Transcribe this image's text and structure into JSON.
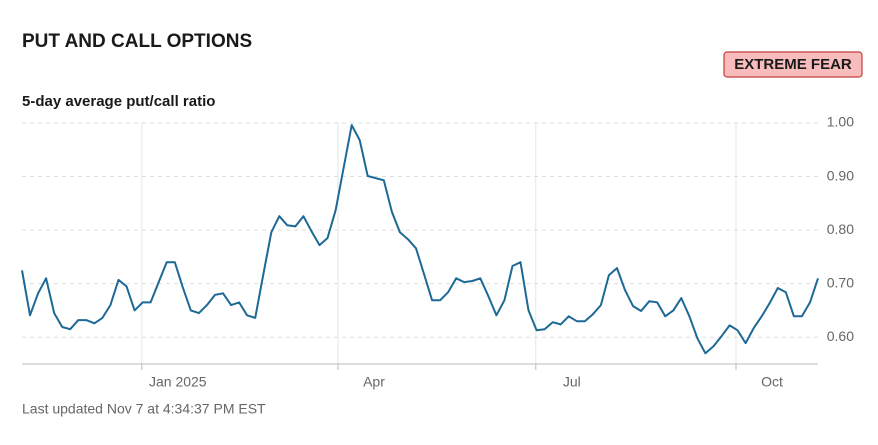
{
  "chart_data": {
    "type": "line",
    "title": "PUT AND CALL OPTIONS",
    "rating": "EXTREME FEAR",
    "subtitle": "5-day average put/call ratio",
    "footer": "Last updated Nov 7 at 4:34:37 PM EST",
    "color": "#1d6996",
    "grid": true,
    "values": [
      0.725,
      0.641,
      0.682,
      0.71,
      0.645,
      0.619,
      0.615,
      0.632,
      0.632,
      0.626,
      0.636,
      0.66,
      0.707,
      0.695,
      0.65,
      0.665,
      0.665,
      0.703,
      0.74,
      0.74,
      0.693,
      0.65,
      0.645,
      0.66,
      0.679,
      0.682,
      0.66,
      0.665,
      0.641,
      0.636,
      0.716,
      0.796,
      0.826,
      0.809,
      0.807,
      0.826,
      0.798,
      0.772,
      0.785,
      0.837,
      0.916,
      0.996,
      0.968,
      0.901,
      0.897,
      0.893,
      0.834,
      0.796,
      0.783,
      0.766,
      0.718,
      0.669,
      0.669,
      0.684,
      0.71,
      0.703,
      0.705,
      0.71,
      0.677,
      0.641,
      0.669,
      0.733,
      0.74,
      0.65,
      0.613,
      0.615,
      0.628,
      0.624,
      0.639,
      0.63,
      0.63,
      0.643,
      0.66,
      0.716,
      0.729,
      0.688,
      0.658,
      0.649,
      0.667,
      0.665,
      0.639,
      0.65,
      0.673,
      0.639,
      0.598,
      0.57,
      0.583,
      0.602,
      0.622,
      0.613,
      0.589,
      0.617,
      0.639,
      0.664,
      0.692,
      0.684,
      0.639,
      0.639,
      0.665,
      0.71
    ],
    "xlim": [
      0,
      99
    ],
    "xticks": [
      {
        "value": 14.9,
        "label": "Jan 2025"
      },
      {
        "value": 39.3,
        "label": "Apr"
      },
      {
        "value": 63.9,
        "label": "Jul"
      },
      {
        "value": 88.8,
        "label": "Oct"
      }
    ],
    "ylim": [
      0.55,
      1.0
    ],
    "yticks": [
      {
        "value": 0.6,
        "label": "0.60"
      },
      {
        "value": 0.7,
        "label": "0.70"
      },
      {
        "value": 0.8,
        "label": "0.80"
      },
      {
        "value": 0.9,
        "label": "0.90"
      },
      {
        "value": 1.0,
        "label": "1.00"
      }
    ]
  }
}
